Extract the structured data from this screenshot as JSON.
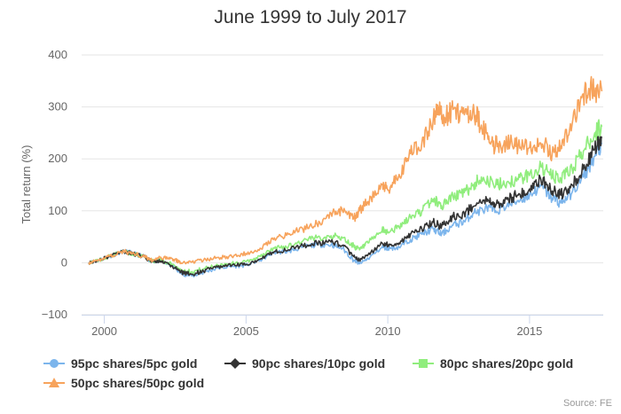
{
  "chart_data": {
    "type": "line",
    "title": "June 1999 to July 2017",
    "ylabel": "Total return (%)",
    "xlabel": "",
    "xlim": [
      1999.2,
      2017.6
    ],
    "ylim": [
      -100,
      400
    ],
    "x_ticks": [
      2000,
      2005,
      2010,
      2015
    ],
    "y_ticks": [
      -100,
      0,
      100,
      200,
      300,
      400
    ],
    "grid": "horizontal",
    "legend_position": "bottom",
    "source": "Source: FE",
    "series": [
      {
        "name": "95pc shares/5pc gold",
        "color": "#7cb5ec",
        "marker": "circle",
        "points": [
          [
            1999.45,
            0
          ],
          [
            1999.8,
            5
          ],
          [
            2000.2,
            13
          ],
          [
            2000.7,
            22
          ],
          [
            2001.0,
            18
          ],
          [
            2001.4,
            12
          ],
          [
            2001.7,
            2
          ],
          [
            2002.0,
            3
          ],
          [
            2002.4,
            -6
          ],
          [
            2002.7,
            -20
          ],
          [
            2003.1,
            -25
          ],
          [
            2003.5,
            -18
          ],
          [
            2004.0,
            -10
          ],
          [
            2004.5,
            -7
          ],
          [
            2005.0,
            -5
          ],
          [
            2005.5,
            5
          ],
          [
            2006.0,
            20
          ],
          [
            2006.5,
            22
          ],
          [
            2007.0,
            30
          ],
          [
            2007.5,
            35
          ],
          [
            2008.0,
            35
          ],
          [
            2008.4,
            28
          ],
          [
            2008.8,
            5
          ],
          [
            2009.0,
            -2
          ],
          [
            2009.3,
            8
          ],
          [
            2009.8,
            30
          ],
          [
            2010.0,
            28
          ],
          [
            2010.4,
            30
          ],
          [
            2010.8,
            45
          ],
          [
            2011.2,
            55
          ],
          [
            2011.6,
            65
          ],
          [
            2011.9,
            55
          ],
          [
            2012.3,
            72
          ],
          [
            2012.7,
            80
          ],
          [
            2013.0,
            95
          ],
          [
            2013.5,
            105
          ],
          [
            2013.8,
            100
          ],
          [
            2014.2,
            110
          ],
          [
            2014.6,
            120
          ],
          [
            2015.0,
            130
          ],
          [
            2015.4,
            148
          ],
          [
            2015.8,
            125
          ],
          [
            2016.1,
            115
          ],
          [
            2016.5,
            135
          ],
          [
            2016.9,
            165
          ],
          [
            2017.3,
            205
          ],
          [
            2017.55,
            228
          ]
        ]
      },
      {
        "name": "90pc shares/10pc gold",
        "color": "#333333",
        "marker": "diamond",
        "points": [
          [
            1999.45,
            0
          ],
          [
            1999.8,
            5
          ],
          [
            2000.2,
            13
          ],
          [
            2000.7,
            22
          ],
          [
            2001.0,
            18
          ],
          [
            2001.4,
            12
          ],
          [
            2001.7,
            2
          ],
          [
            2002.0,
            3
          ],
          [
            2002.4,
            -6
          ],
          [
            2002.7,
            -18
          ],
          [
            2003.1,
            -22
          ],
          [
            2003.5,
            -16
          ],
          [
            2004.0,
            -8
          ],
          [
            2004.5,
            -5
          ],
          [
            2005.0,
            -3
          ],
          [
            2005.5,
            7
          ],
          [
            2006.0,
            22
          ],
          [
            2006.5,
            25
          ],
          [
            2007.0,
            33
          ],
          [
            2007.5,
            38
          ],
          [
            2008.0,
            40
          ],
          [
            2008.4,
            33
          ],
          [
            2008.8,
            12
          ],
          [
            2009.0,
            5
          ],
          [
            2009.3,
            15
          ],
          [
            2009.8,
            38
          ],
          [
            2010.0,
            35
          ],
          [
            2010.4,
            38
          ],
          [
            2010.8,
            55
          ],
          [
            2011.2,
            65
          ],
          [
            2011.6,
            78
          ],
          [
            2011.9,
            70
          ],
          [
            2012.3,
            88
          ],
          [
            2012.7,
            95
          ],
          [
            2013.0,
            108
          ],
          [
            2013.5,
            118
          ],
          [
            2013.8,
            110
          ],
          [
            2014.2,
            122
          ],
          [
            2014.6,
            130
          ],
          [
            2015.0,
            142
          ],
          [
            2015.4,
            160
          ],
          [
            2015.8,
            138
          ],
          [
            2016.1,
            130
          ],
          [
            2016.5,
            150
          ],
          [
            2016.9,
            180
          ],
          [
            2017.3,
            220
          ],
          [
            2017.55,
            240
          ]
        ]
      },
      {
        "name": "80pc shares/20pc gold",
        "color": "#90ed7d",
        "marker": "square",
        "points": [
          [
            1999.45,
            0
          ],
          [
            1999.8,
            5
          ],
          [
            2000.2,
            13
          ],
          [
            2000.7,
            22
          ],
          [
            2001.0,
            18
          ],
          [
            2001.4,
            12
          ],
          [
            2001.7,
            3
          ],
          [
            2002.0,
            5
          ],
          [
            2002.4,
            -3
          ],
          [
            2002.7,
            -14
          ],
          [
            2003.1,
            -17
          ],
          [
            2003.5,
            -12
          ],
          [
            2004.0,
            -4
          ],
          [
            2004.5,
            -1
          ],
          [
            2005.0,
            2
          ],
          [
            2005.5,
            12
          ],
          [
            2006.0,
            28
          ],
          [
            2006.5,
            32
          ],
          [
            2007.0,
            42
          ],
          [
            2007.5,
            48
          ],
          [
            2008.0,
            52
          ],
          [
            2008.4,
            48
          ],
          [
            2008.8,
            32
          ],
          [
            2009.0,
            25
          ],
          [
            2009.3,
            38
          ],
          [
            2009.8,
            62
          ],
          [
            2010.0,
            60
          ],
          [
            2010.4,
            68
          ],
          [
            2010.8,
            88
          ],
          [
            2011.2,
            100
          ],
          [
            2011.6,
            122
          ],
          [
            2011.9,
            110
          ],
          [
            2012.3,
            128
          ],
          [
            2012.7,
            135
          ],
          [
            2013.0,
            148
          ],
          [
            2013.3,
            165
          ],
          [
            2013.8,
            148
          ],
          [
            2014.2,
            155
          ],
          [
            2014.6,
            160
          ],
          [
            2015.0,
            168
          ],
          [
            2015.4,
            185
          ],
          [
            2015.8,
            165
          ],
          [
            2016.1,
            162
          ],
          [
            2016.5,
            182
          ],
          [
            2016.9,
            215
          ],
          [
            2017.3,
            250
          ],
          [
            2017.55,
            262
          ]
        ]
      },
      {
        "name": "50pc shares/50pc gold",
        "color": "#f7a35c",
        "marker": "triangle",
        "points": [
          [
            1999.45,
            0
          ],
          [
            1999.8,
            5
          ],
          [
            2000.2,
            13
          ],
          [
            2000.7,
            22
          ],
          [
            2001.0,
            18
          ],
          [
            2001.4,
            12
          ],
          [
            2001.7,
            5
          ],
          [
            2002.0,
            10
          ],
          [
            2002.4,
            8
          ],
          [
            2002.7,
            0
          ],
          [
            2003.1,
            2
          ],
          [
            2003.5,
            5
          ],
          [
            2004.0,
            10
          ],
          [
            2004.5,
            12
          ],
          [
            2005.0,
            18
          ],
          [
            2005.5,
            28
          ],
          [
            2006.0,
            48
          ],
          [
            2006.5,
            55
          ],
          [
            2007.0,
            65
          ],
          [
            2007.5,
            75
          ],
          [
            2008.0,
            95
          ],
          [
            2008.4,
            100
          ],
          [
            2008.8,
            85
          ],
          [
            2009.0,
            100
          ],
          [
            2009.3,
            118
          ],
          [
            2009.8,
            150
          ],
          [
            2010.0,
            140
          ],
          [
            2010.4,
            170
          ],
          [
            2010.8,
            210
          ],
          [
            2011.2,
            230
          ],
          [
            2011.6,
            275
          ],
          [
            2011.8,
            300
          ],
          [
            2012.0,
            280
          ],
          [
            2012.3,
            295
          ],
          [
            2012.7,
            285
          ],
          [
            2013.0,
            295
          ],
          [
            2013.3,
            265
          ],
          [
            2013.6,
            230
          ],
          [
            2013.9,
            225
          ],
          [
            2014.2,
            230
          ],
          [
            2014.6,
            225
          ],
          [
            2015.0,
            222
          ],
          [
            2015.4,
            230
          ],
          [
            2015.8,
            212
          ],
          [
            2016.1,
            225
          ],
          [
            2016.5,
            265
          ],
          [
            2016.9,
            325
          ],
          [
            2017.2,
            335
          ],
          [
            2017.55,
            330
          ]
        ]
      }
    ]
  }
}
